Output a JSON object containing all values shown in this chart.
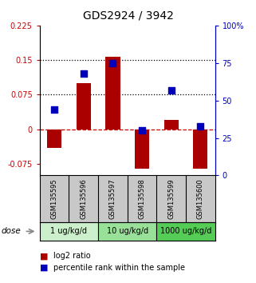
{
  "title": "GDS2924 / 3942",
  "samples": [
    "GSM135595",
    "GSM135596",
    "GSM135597",
    "GSM135598",
    "GSM135599",
    "GSM135600"
  ],
  "log2_ratio": [
    -0.04,
    0.1,
    0.158,
    -0.085,
    0.02,
    -0.085
  ],
  "percentile_rank": [
    44,
    68,
    75,
    30,
    57,
    33
  ],
  "doses": [
    {
      "label": "1 ug/kg/d",
      "samples_idx": [
        0,
        1
      ],
      "color": "#ccf0cc"
    },
    {
      "label": "10 ug/kg/d",
      "samples_idx": [
        2,
        3
      ],
      "color": "#99e099"
    },
    {
      "label": "1000 ug/kg/d",
      "samples_idx": [
        4,
        5
      ],
      "color": "#55cc55"
    }
  ],
  "bar_color": "#aa0000",
  "dot_color": "#0000bb",
  "left_ylim": [
    -0.1,
    0.225
  ],
  "right_ylim": [
    0,
    100
  ],
  "left_yticks": [
    -0.075,
    0,
    0.075,
    0.15,
    0.225
  ],
  "right_yticks": [
    0,
    25,
    50,
    75,
    100
  ],
  "left_ytick_labels": [
    "-0.075",
    "0",
    "0.075",
    "0.15",
    "0.225"
  ],
  "right_ytick_labels": [
    "0",
    "25",
    "50",
    "75",
    "100%"
  ],
  "hline_y": [
    0.075,
    0.15
  ],
  "background_color": "#ffffff",
  "sample_bg_color": "#c8c8c8",
  "bar_width": 0.5,
  "dot_size": 40
}
